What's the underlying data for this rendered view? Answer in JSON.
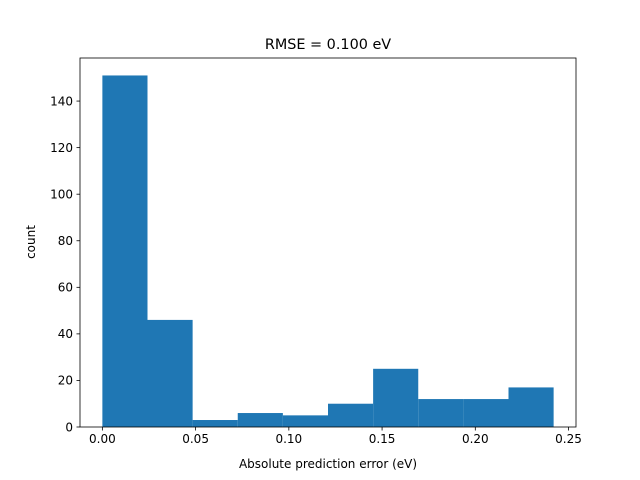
{
  "chart_data": {
    "type": "bar",
    "title": "RMSE = 0.100 eV",
    "xlabel": "Absolute prediction error (eV)",
    "ylabel": "count",
    "xlim": [
      -0.012,
      0.254
    ],
    "ylim": [
      0,
      158.5
    ],
    "bin_edges": [
      0.0,
      0.0242,
      0.0484,
      0.0726,
      0.0968,
      0.121,
      0.1452,
      0.1694,
      0.1936,
      0.2178,
      0.242
    ],
    "values": [
      151,
      46,
      3,
      6,
      5,
      10,
      25,
      12,
      12,
      17
    ],
    "bar_color": "#1f77b4",
    "x_ticks": [
      {
        "value": 0.0,
        "label": "0.00"
      },
      {
        "value": 0.05,
        "label": "0.05"
      },
      {
        "value": 0.1,
        "label": "0.10"
      },
      {
        "value": 0.15,
        "label": "0.15"
      },
      {
        "value": 0.2,
        "label": "0.20"
      },
      {
        "value": 0.25,
        "label": "0.25"
      }
    ],
    "y_ticks": [
      {
        "value": 0,
        "label": "0"
      },
      {
        "value": 20,
        "label": "20"
      },
      {
        "value": 40,
        "label": "40"
      },
      {
        "value": 60,
        "label": "60"
      },
      {
        "value": 80,
        "label": "80"
      },
      {
        "value": 100,
        "label": "100"
      },
      {
        "value": 120,
        "label": "120"
      },
      {
        "value": 140,
        "label": "140"
      }
    ],
    "grid": false,
    "legend": "none"
  }
}
